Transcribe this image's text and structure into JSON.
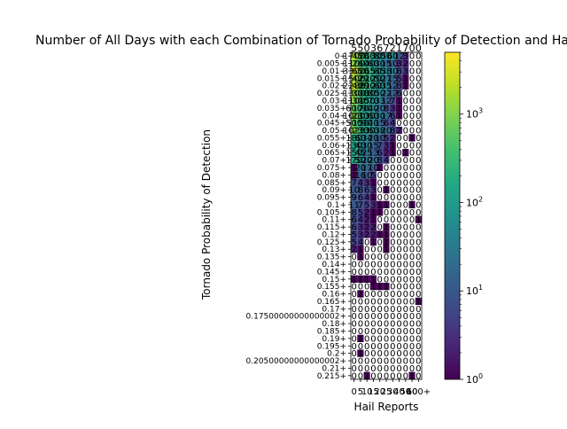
{
  "chart_data": {
    "type": "heatmap",
    "title": "Number of All Days with each Combination of Tornado Probability of Detection and Hail Reports",
    "xlabel": "Hail Reports",
    "ylabel": "Tornado Probability of Detection",
    "x_categories": [
      "0",
      "5",
      "10",
      "15",
      "20",
      "25",
      "30",
      "40",
      "50",
      "60",
      "100+"
    ],
    "x_tick_labels": [
      "0",
      "5",
      "10",
      "15",
      "20",
      "25",
      "30",
      "40",
      "50",
      "60",
      "100+"
    ],
    "y_categories": [
      "0+",
      "0.005+",
      "0.01+",
      "0.015+",
      "0.02+",
      "0.025+",
      "0.03+",
      "0.035+",
      "0.04+",
      "0.045+",
      "0.05+",
      "0.055+",
      "0.06+",
      "0.065+",
      "0.07+",
      "0.075+",
      "0.08+",
      "0.085+",
      "0.09+",
      "0.095+",
      "0.1+",
      "0.105+",
      "0.11+",
      "0.115+",
      "0.12+",
      "0.125+",
      "0.13+",
      "0.135+",
      "0.14+",
      "0.145+",
      "0.15+",
      "0.155+",
      "0.16+",
      "0.165+",
      "0.17+",
      "0.17500000000000002+",
      "0.18+",
      "0.185+",
      "0.19+",
      "0.195+",
      "0.2+",
      "0.20500000000000002+",
      "0.21+",
      "0.215+"
    ],
    "top_row_labels": [
      "5",
      "5",
      "0",
      "3",
      "6",
      "7",
      "2",
      "1",
      "7",
      "0",
      "0"
    ],
    "colorbar": {
      "scale": "log",
      "min": 1,
      "max": 5000,
      "colormap": "viridis",
      "tick_labels": [
        "10^0",
        "10^1",
        "10^2",
        "10^3"
      ]
    },
    "values": [
      [
        1700,
        450,
        260,
        130,
        80,
        50,
        60,
        12,
        3,
        0,
        0
      ],
      [
        1100,
        260,
        140,
        60,
        30,
        15,
        10,
        3,
        2,
        0,
        0
      ],
      [
        3300,
        650,
        265,
        150,
        85,
        38,
        30,
        8,
        3,
        0,
        0
      ],
      [
        1500,
        429,
        220,
        120,
        50,
        27,
        15,
        5,
        1,
        0,
        0
      ],
      [
        2288,
        480,
        290,
        120,
        60,
        35,
        12,
        8,
        1,
        0,
        0
      ],
      [
        1300,
        300,
        180,
        80,
        50,
        22,
        12,
        6,
        0,
        0,
        0
      ],
      [
        1100,
        300,
        150,
        70,
        33,
        12,
        7,
        1,
        0,
        0,
        0
      ],
      [
        600,
        170,
        90,
        40,
        20,
        8,
        3,
        1,
        0,
        0,
        0
      ],
      [
        1000,
        230,
        130,
        60,
        30,
        17,
        6,
        1,
        0,
        0,
        0
      ],
      [
        500,
        150,
        90,
        40,
        15,
        6,
        4,
        0,
        0,
        0,
        0
      ],
      [
        1023,
        230,
        130,
        60,
        38,
        20,
        8,
        2,
        0,
        0,
        0
      ],
      [
        180,
        60,
        34,
        20,
        10,
        5,
        2,
        0,
        0,
        1,
        0
      ],
      [
        130,
        40,
        30,
        15,
        7,
        3,
        1,
        0,
        0,
        0,
        0
      ],
      [
        150,
        45,
        25,
        13,
        6,
        2,
        1,
        0,
        1,
        0,
        0
      ],
      [
        170,
        50,
        20,
        20,
        8,
        4,
        0,
        0,
        0,
        0,
        0
      ],
      [
        1,
        20,
        17,
        10,
        1,
        0,
        0,
        0,
        0,
        0,
        0
      ],
      [
        1,
        16,
        10,
        5,
        0,
        0,
        0,
        0,
        0,
        0,
        0
      ],
      [
        7,
        4,
        3,
        1,
        0,
        0,
        0,
        0,
        0,
        0,
        0
      ],
      [
        10,
        8,
        6,
        3,
        0,
        1,
        0,
        0,
        0,
        0,
        0
      ],
      [
        9,
        6,
        4,
        1,
        0,
        0,
        0,
        0,
        0,
        0,
        0
      ],
      [
        11,
        7,
        5,
        3,
        1,
        1,
        0,
        0,
        0,
        1,
        0
      ],
      [
        8,
        5,
        2,
        1,
        1,
        0,
        0,
        0,
        0,
        0,
        0
      ],
      [
        6,
        4,
        2,
        1,
        0,
        0,
        0,
        0,
        0,
        0,
        1
      ],
      [
        6,
        3,
        2,
        2,
        0,
        1,
        0,
        0,
        0,
        0,
        0
      ],
      [
        5,
        3,
        2,
        2,
        1,
        1,
        0,
        0,
        0,
        0,
        0
      ],
      [
        5,
        4,
        0,
        1,
        0,
        1,
        0,
        0,
        0,
        0,
        0
      ],
      [
        2,
        1,
        0,
        0,
        0,
        1,
        0,
        0,
        0,
        0,
        0
      ],
      [
        0,
        1,
        0,
        0,
        0,
        0,
        0,
        0,
        0,
        0,
        0
      ],
      [
        0,
        0,
        0,
        0,
        0,
        0,
        0,
        0,
        0,
        0,
        0
      ],
      [
        0,
        0,
        0,
        0,
        0,
        0,
        0,
        0,
        0,
        0,
        0
      ],
      [
        1,
        1,
        1,
        1,
        0,
        0,
        0,
        0,
        0,
        0,
        0
      ],
      [
        0,
        0,
        0,
        1,
        1,
        1,
        0,
        0,
        0,
        0,
        0
      ],
      [
        0,
        1,
        0,
        0,
        0,
        0,
        0,
        0,
        0,
        0,
        0
      ],
      [
        0,
        0,
        0,
        0,
        0,
        0,
        0,
        0,
        0,
        0,
        1
      ],
      [
        0,
        0,
        0,
        0,
        0,
        0,
        0,
        0,
        0,
        0,
        0
      ],
      [
        0,
        0,
        0,
        0,
        0,
        0,
        0,
        0,
        0,
        0,
        0
      ],
      [
        0,
        0,
        0,
        0,
        0,
        0,
        0,
        0,
        0,
        0,
        0
      ],
      [
        0,
        0,
        0,
        0,
        0,
        0,
        0,
        0,
        0,
        0,
        0
      ],
      [
        0,
        1,
        0,
        0,
        0,
        0,
        0,
        0,
        0,
        0,
        0
      ],
      [
        0,
        0,
        0,
        0,
        0,
        0,
        0,
        0,
        0,
        0,
        0
      ],
      [
        0,
        1,
        0,
        0,
        0,
        0,
        0,
        0,
        0,
        0,
        0
      ],
      [
        0,
        0,
        0,
        0,
        0,
        0,
        0,
        0,
        0,
        0,
        0
      ],
      [
        0,
        0,
        0,
        0,
        0,
        0,
        0,
        0,
        0,
        0,
        0
      ],
      [
        0,
        0,
        1,
        0,
        0,
        0,
        0,
        0,
        0,
        1,
        0
      ]
    ]
  }
}
